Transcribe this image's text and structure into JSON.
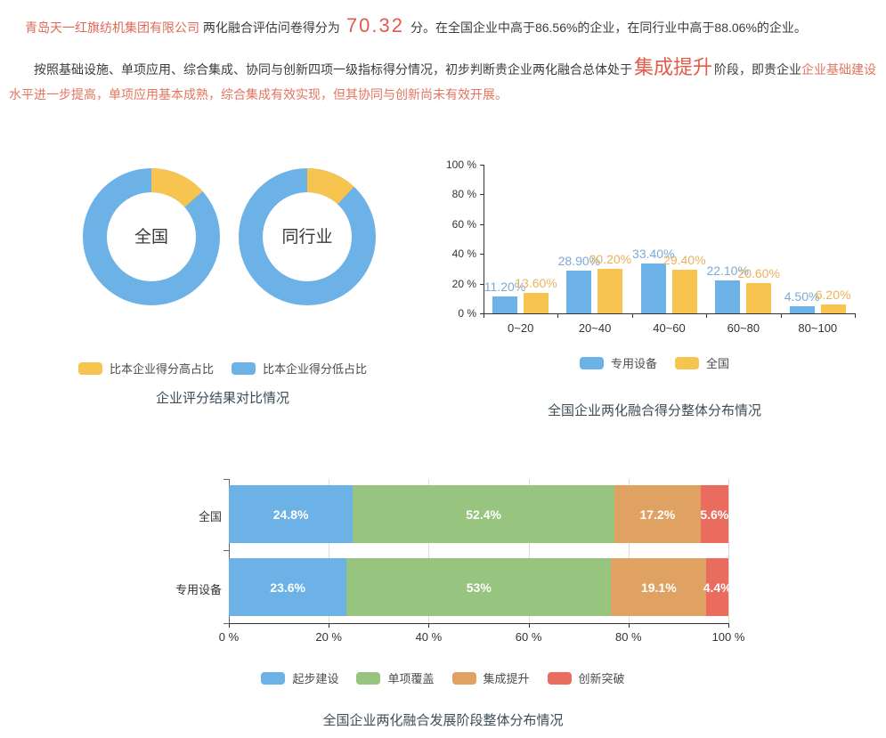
{
  "header": {
    "p1": {
      "company": "青岛天一红旗纺机集团有限公司",
      "mid": "两化融合评估问卷得分为",
      "score": "70.32",
      "tail": "分。在全国企业中高于86.56%的企业，在同行业中高于88.06%的企业。"
    },
    "p2": {
      "lead": "按照基础设施、单项应用、综合集成、协同与创新四项一级指标得分情况，初步判断贵企业两化融合总体处于",
      "stage": "集成提升",
      "mid": "阶段，即贵企业",
      "tail": "企业基础建设水平进一步提高，单项应用基本成熟，综合集成有效实现，但其协同与创新尚未有效开展。"
    }
  },
  "colors": {
    "blue": "#6cb2e6",
    "yellow": "#f6c44f",
    "green": "#97c57f",
    "orange": "#dfa263",
    "red": "#e96c5f",
    "accent_text": "#e25b4b",
    "caption": "#3e4d57"
  },
  "chart_data": [
    {
      "id": "donut-compare",
      "type": "pie",
      "title": "企业评分结果对比情况",
      "legend": [
        {
          "label": "比本企业得分高占比",
          "color": "#f6c44f"
        },
        {
          "label": "比本企业得分低占比",
          "color": "#6cb2e6"
        }
      ],
      "donuts": [
        {
          "label": "全国",
          "higher_pct": 13.44,
          "lower_pct": 86.56
        },
        {
          "label": "同行业",
          "higher_pct": 11.94,
          "lower_pct": 88.06
        }
      ]
    },
    {
      "id": "score-distribution",
      "type": "bar",
      "title": "全国企业两化融合得分整体分布情况",
      "categories": [
        "0~20",
        "20~40",
        "40~60",
        "60~80",
        "80~100"
      ],
      "series": [
        {
          "name": "专用设备",
          "color": "#6cb2e6",
          "label_color": "#7ea9d2",
          "values": [
            11.2,
            28.9,
            33.4,
            22.1,
            4.5
          ],
          "labels": [
            "11.20%",
            "28.90%",
            "33.40%",
            "22.10%",
            "4.50%"
          ]
        },
        {
          "name": "全国",
          "color": "#f6c44f",
          "label_color": "#ebb25c",
          "values": [
            13.6,
            30.2,
            29.4,
            20.6,
            6.2
          ],
          "labels": [
            "13.60%",
            "30.20%",
            "29.40%",
            "20.60%",
            "6.20%"
          ]
        }
      ],
      "yticks": [
        "0 %",
        "20 %",
        "40 %",
        "60 %",
        "80 %",
        "100 %"
      ],
      "ylim": [
        0,
        100
      ],
      "grid": false,
      "legend_position": "bottom"
    },
    {
      "id": "stage-distribution",
      "type": "stacked-bar",
      "title": "全国企业两化融合发展阶段整体分布情况",
      "categories": [
        "全国",
        "专用设备"
      ],
      "series": [
        {
          "name": "起步建设",
          "color": "#6cb2e6",
          "values": [
            24.8,
            23.6
          ],
          "labels": [
            "24.8%",
            "23.6%"
          ]
        },
        {
          "name": "单项覆盖",
          "color": "#97c57f",
          "values": [
            52.4,
            53
          ],
          "labels": [
            "52.4%",
            "53%"
          ]
        },
        {
          "name": "集成提升",
          "color": "#dfa263",
          "values": [
            17.2,
            19.1
          ],
          "labels": [
            "17.2%",
            "19.1%"
          ]
        },
        {
          "name": "创新突破",
          "color": "#e96c5f",
          "values": [
            5.6,
            4.4
          ],
          "labels": [
            "5.6%",
            "4.4%"
          ]
        }
      ],
      "xticks": [
        "0 %",
        "20 %",
        "40 %",
        "60 %",
        "80 %",
        "100 %"
      ],
      "xlim": [
        0,
        100
      ],
      "grid": true,
      "legend_position": "bottom"
    }
  ]
}
